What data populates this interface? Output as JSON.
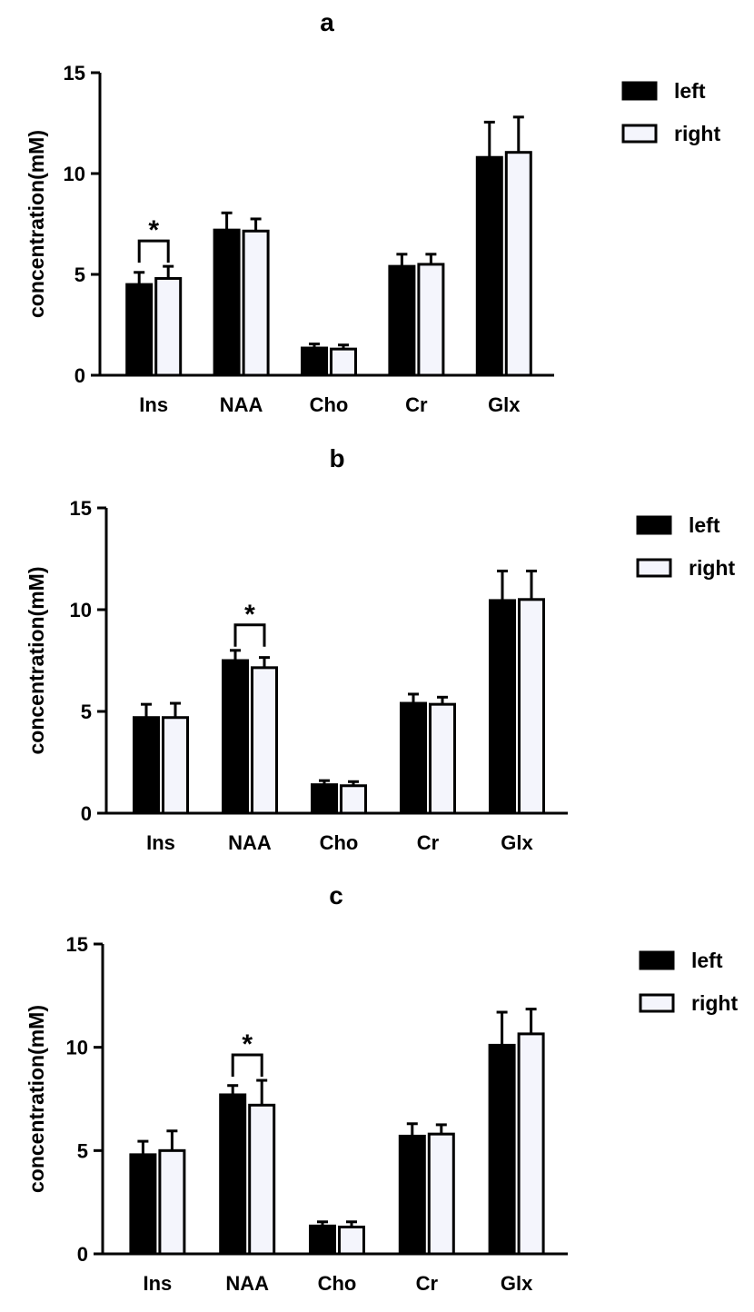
{
  "colors": {
    "left": "#000000",
    "right": "#f4f5fc",
    "axis": "#000000"
  },
  "chart_data": [
    {
      "type": "bar",
      "title": "a",
      "ylabel": "concentration(mM)",
      "xlabel": "",
      "ylim": [
        0,
        15
      ],
      "yticks": [
        0,
        5,
        10,
        15
      ],
      "categories": [
        "Ins",
        "NAA",
        "Cho",
        "Cr",
        "Glx"
      ],
      "series": [
        {
          "name": "left",
          "values": [
            4.5,
            7.2,
            1.35,
            5.4,
            10.8
          ],
          "errors": [
            0.6,
            0.85,
            0.2,
            0.6,
            1.75
          ]
        },
        {
          "name": "right",
          "values": [
            4.8,
            7.15,
            1.3,
            5.5,
            11.05
          ],
          "errors": [
            0.6,
            0.6,
            0.2,
            0.5,
            1.75
          ]
        }
      ],
      "significance": [
        {
          "category": "Ins",
          "label": "*"
        }
      ],
      "legend": "top-right"
    },
    {
      "type": "bar",
      "title": "b",
      "ylabel": "concentration(mM)",
      "xlabel": "",
      "ylim": [
        0,
        15
      ],
      "yticks": [
        0,
        5,
        10,
        15
      ],
      "categories": [
        "Ins",
        "NAA",
        "Cho",
        "Cr",
        "Glx"
      ],
      "series": [
        {
          "name": "left",
          "values": [
            4.7,
            7.5,
            1.4,
            5.4,
            10.45
          ],
          "errors": [
            0.65,
            0.5,
            0.2,
            0.45,
            1.45
          ]
        },
        {
          "name": "right",
          "values": [
            4.7,
            7.15,
            1.35,
            5.35,
            10.5
          ],
          "errors": [
            0.7,
            0.5,
            0.2,
            0.35,
            1.4
          ]
        }
      ],
      "significance": [
        {
          "category": "NAA",
          "label": "*"
        }
      ],
      "legend": "top-right"
    },
    {
      "type": "bar",
      "title": "c",
      "ylabel": "concentration(mM)",
      "xlabel": "",
      "ylim": [
        0,
        15
      ],
      "yticks": [
        0,
        5,
        10,
        15
      ],
      "categories": [
        "Ins",
        "NAA",
        "Cho",
        "Cr",
        "Glx"
      ],
      "series": [
        {
          "name": "left",
          "values": [
            4.8,
            7.7,
            1.35,
            5.7,
            10.1
          ],
          "errors": [
            0.65,
            0.45,
            0.2,
            0.6,
            1.6
          ]
        },
        {
          "name": "right",
          "values": [
            5.0,
            7.2,
            1.3,
            5.8,
            10.65
          ],
          "errors": [
            0.95,
            1.2,
            0.25,
            0.45,
            1.2
          ]
        }
      ],
      "significance": [
        {
          "category": "NAA",
          "label": "*"
        }
      ],
      "legend": "top-right"
    }
  ]
}
